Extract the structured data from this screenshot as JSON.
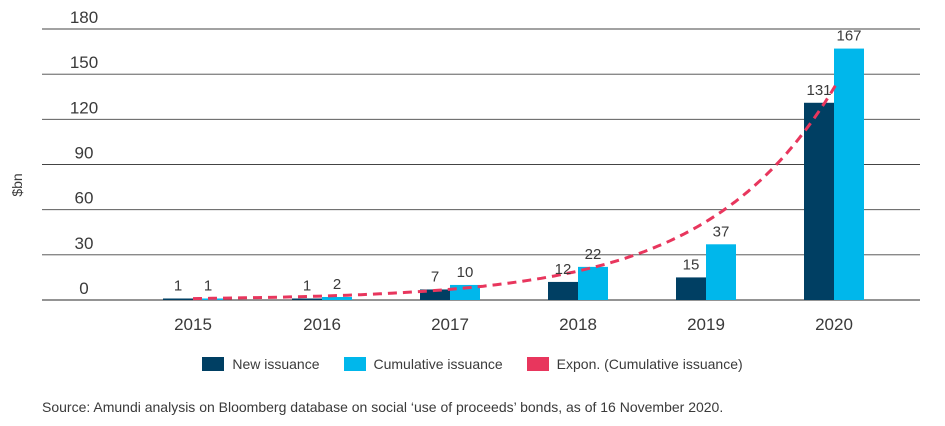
{
  "chart_data": {
    "type": "bar",
    "ylabel": "$bn",
    "ylim": [
      0,
      180
    ],
    "yticks": [
      0,
      30,
      60,
      90,
      120,
      150,
      180
    ],
    "categories": [
      "2015",
      "2016",
      "2017",
      "2018",
      "2019",
      "2020"
    ],
    "series": [
      {
        "name": "New issuance",
        "values": [
          1,
          1,
          7,
          12,
          15,
          131
        ],
        "color": "#003f63"
      },
      {
        "name": "Cumulative issuance",
        "values": [
          1,
          2,
          10,
          22,
          37,
          167
        ],
        "color": "#00b7eb"
      }
    ],
    "trendline": {
      "name": "Expon. (Cumulative issuance)",
      "color": "#e8365d",
      "style": "dashed"
    },
    "grid": true,
    "legend_position": "bottom"
  },
  "source": "Source: Amundi analysis on Bloomberg database on social ‘use of proceeds’ bonds, as of 16 November 2020."
}
